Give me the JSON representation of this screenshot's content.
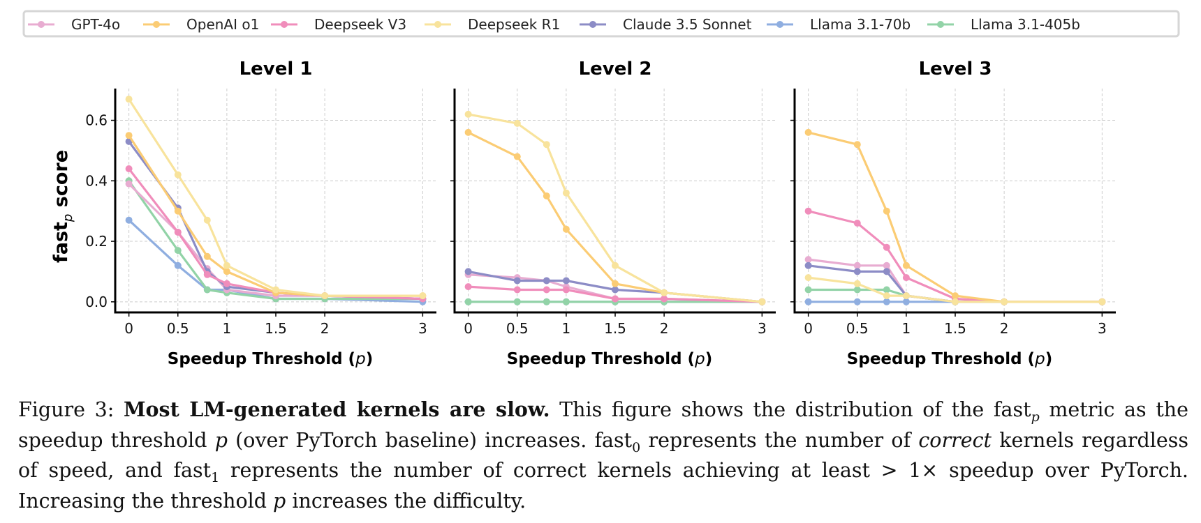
{
  "chart_data": {
    "type": "line",
    "legend": {
      "placement": "top",
      "entries": [
        {
          "name": "GPT-4o",
          "color": "#e8acd1"
        },
        {
          "name": "OpenAI o1",
          "color": "#fbcc74"
        },
        {
          "name": "Deepseek V3",
          "color": "#f08dbb"
        },
        {
          "name": "Deepseek R1",
          "color": "#f8e39c"
        },
        {
          "name": "Claude 3.5 Sonnet",
          "color": "#8c8cc6"
        },
        {
          "name": "Llama 3.1-70b",
          "color": "#8faee0"
        },
        {
          "name": "Llama 3.1-405b",
          "color": "#92d3a7"
        }
      ]
    },
    "ylabel": "fast",
    "ylabel_sub": "p",
    "ylabel_suffix": " score",
    "xlabel": "Speedup Threshold (",
    "xlabel_var": "p",
    "xlabel_close": ")",
    "x": [
      0,
      0.5,
      0.8,
      1,
      1.5,
      2,
      3
    ],
    "xticks": [
      0,
      0.5,
      1,
      1.5,
      2,
      3
    ],
    "xtick_labels": [
      "0",
      "0.5",
      "1",
      "1.5",
      "2",
      "3"
    ],
    "yticks": [
      0.0,
      0.2,
      0.4,
      0.6
    ],
    "ytick_labels": [
      "0.0",
      "0.2",
      "0.4",
      "0.6"
    ],
    "xlim": [
      -0.14,
      3.14
    ],
    "ylim": [
      -0.035,
      0.705
    ],
    "grid": true,
    "panels": [
      {
        "title": "Level 1",
        "series": [
          {
            "name": "GPT-4o",
            "values": [
              0.39,
              0.23,
              0.11,
              0.04,
              0.02,
              0.02,
              0.01
            ]
          },
          {
            "name": "Llama 3.1-70b",
            "values": [
              0.27,
              0.12,
              0.04,
              0.04,
              0.01,
              0.01,
              0.0
            ]
          },
          {
            "name": "Llama 3.1-405b",
            "values": [
              0.4,
              0.17,
              0.04,
              0.03,
              0.01,
              0.01,
              0.01
            ]
          },
          {
            "name": "Claude 3.5 Sonnet",
            "values": [
              0.53,
              0.31,
              0.1,
              0.05,
              0.03,
              0.02,
              0.01
            ]
          },
          {
            "name": "Deepseek V3",
            "values": [
              0.44,
              0.23,
              0.09,
              0.06,
              0.03,
              0.02,
              0.01
            ]
          },
          {
            "name": "OpenAI o1",
            "values": [
              0.55,
              0.3,
              0.15,
              0.1,
              0.03,
              0.02,
              0.02
            ]
          },
          {
            "name": "Deepseek R1",
            "values": [
              0.67,
              0.42,
              0.27,
              0.12,
              0.04,
              0.02,
              0.02
            ]
          }
        ]
      },
      {
        "title": "Level 2",
        "series": [
          {
            "name": "GPT-4o",
            "values": [
              0.09,
              0.08,
              0.07,
              0.05,
              0.01,
              0.01,
              0.0
            ]
          },
          {
            "name": "Llama 3.1-70b",
            "values": [
              0.0,
              0.0,
              0.0,
              0.0,
              0.0,
              0.0,
              0.0
            ]
          },
          {
            "name": "Llama 3.1-405b",
            "values": [
              0.0,
              0.0,
              0.0,
              0.0,
              0.0,
              0.0,
              0.0
            ]
          },
          {
            "name": "Claude 3.5 Sonnet",
            "values": [
              0.1,
              0.07,
              0.07,
              0.07,
              0.04,
              0.03,
              0.0
            ]
          },
          {
            "name": "Deepseek V3",
            "values": [
              0.05,
              0.04,
              0.04,
              0.04,
              0.01,
              0.01,
              0.0
            ]
          },
          {
            "name": "OpenAI o1",
            "values": [
              0.56,
              0.48,
              0.35,
              0.24,
              0.06,
              0.03,
              0.0
            ]
          },
          {
            "name": "Deepseek R1",
            "values": [
              0.62,
              0.59,
              0.52,
              0.36,
              0.12,
              0.03,
              0.0
            ]
          }
        ]
      },
      {
        "title": "Level 3",
        "series": [
          {
            "name": "GPT-4o",
            "values": [
              0.14,
              0.12,
              0.12,
              0.02,
              0.0,
              0.0,
              0.0
            ]
          },
          {
            "name": "Llama 3.1-70b",
            "values": [
              0.0,
              0.0,
              0.0,
              0.0,
              0.0,
              0.0,
              0.0
            ]
          },
          {
            "name": "Llama 3.1-405b",
            "values": [
              0.04,
              0.04,
              0.04,
              0.02,
              0.0,
              0.0,
              0.0
            ]
          },
          {
            "name": "Claude 3.5 Sonnet",
            "values": [
              0.12,
              0.1,
              0.1,
              0.02,
              0.0,
              0.0,
              0.0
            ]
          },
          {
            "name": "Deepseek V3",
            "values": [
              0.3,
              0.26,
              0.18,
              0.08,
              0.01,
              0.0,
              0.0
            ]
          },
          {
            "name": "OpenAI o1",
            "values": [
              0.56,
              0.52,
              0.3,
              0.12,
              0.02,
              0.0,
              0.0
            ]
          },
          {
            "name": "Deepseek R1",
            "values": [
              0.08,
              0.06,
              0.02,
              0.02,
              0.0,
              0.0,
              0.0
            ]
          }
        ]
      }
    ]
  },
  "caption": {
    "label": "Figure 3: ",
    "bold": "Most LM-generated kernels are slow.",
    "t1": " This figure shows the distribution of the fast",
    "sub_p": "p",
    "t2": " metric as the speedup threshold ",
    "p1": "p",
    "t3": " (over PyTorch baseline) increases. fast",
    "sub_0": "0",
    "t4": " represents the number of ",
    "italic_correct": "correct",
    "t5": " kernels regardless of speed, and fast",
    "sub_1": "1",
    "t6": " represents the number of correct kernels achieving at least > 1× speedup over PyTorch. Increasing the threshold ",
    "p2": "p",
    "t7": " increases the difficulty."
  }
}
